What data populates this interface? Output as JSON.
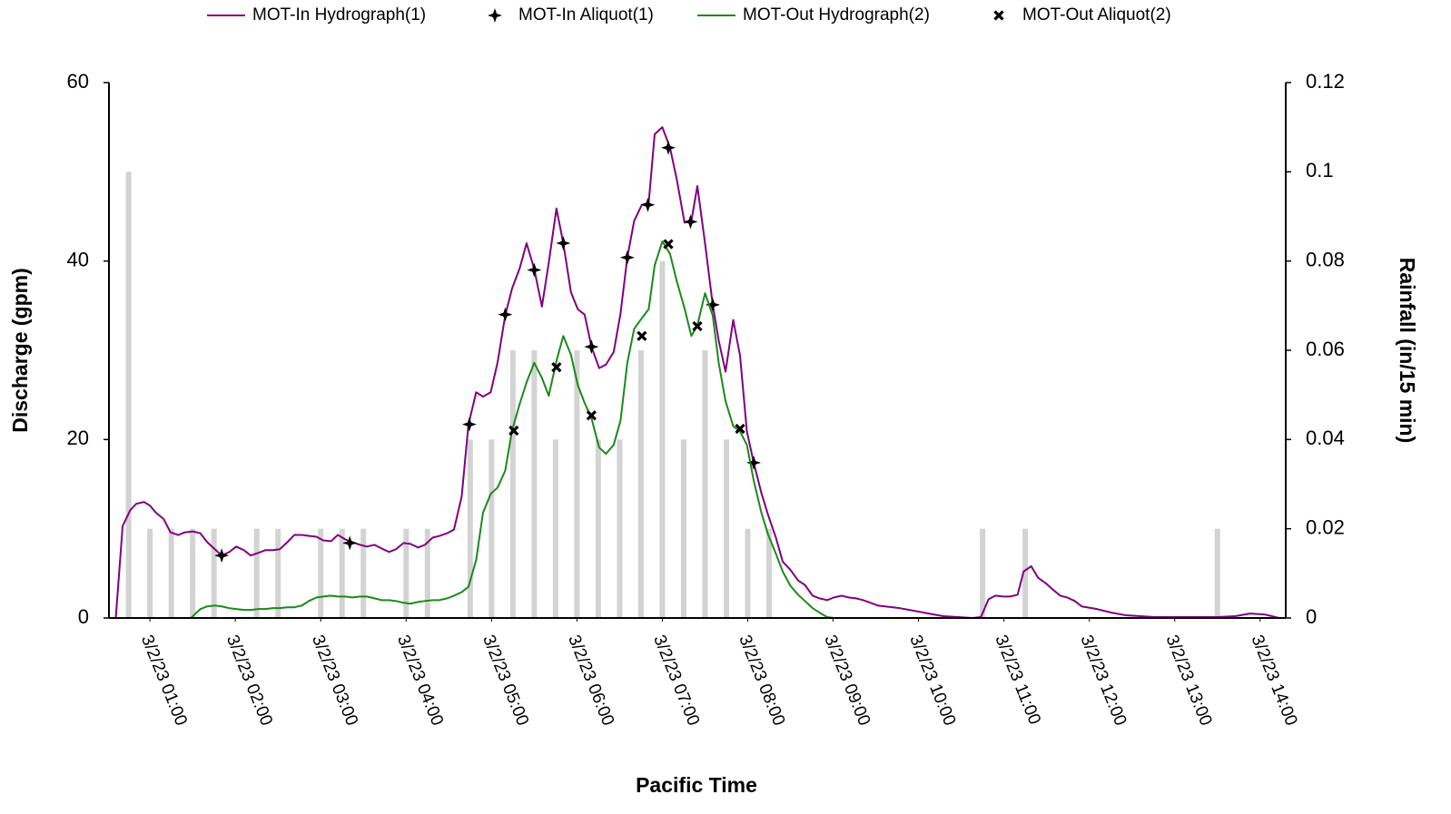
{
  "chart_data": {
    "type": "line",
    "x_label": "Pacific Time",
    "y_label": "Discharge (gpm)",
    "y2_label": "Rainfall (in/15 min)",
    "legend": "top",
    "xlim": [
      0.52,
      14.3
    ],
    "xticks": [
      {
        "value": 1,
        "label": "3/2/23 01:00"
      },
      {
        "value": 2,
        "label": "3/2/23 02:00"
      },
      {
        "value": 3,
        "label": "3/2/23 03:00"
      },
      {
        "value": 4,
        "label": "3/2/23 04:00"
      },
      {
        "value": 5,
        "label": "3/2/23 05:00"
      },
      {
        "value": 6,
        "label": "3/2/23 06:00"
      },
      {
        "value": 7,
        "label": "3/2/23 07:00"
      },
      {
        "value": 8,
        "label": "3/2/23 08:00"
      },
      {
        "value": 9,
        "label": "3/2/23 09:00"
      },
      {
        "value": 10,
        "label": "3/2/23 10:00"
      },
      {
        "value": 11,
        "label": "3/2/23 11:00"
      },
      {
        "value": 12,
        "label": "3/2/23 12:00"
      },
      {
        "value": 13,
        "label": "3/2/23 13:00"
      },
      {
        "value": 14,
        "label": "3/2/23 14:00"
      }
    ],
    "ylim": [
      0,
      60
    ],
    "yticks": [
      0,
      20,
      40,
      60
    ],
    "y2lim": [
      0,
      0.12
    ],
    "y2ticks": [
      0,
      0.02,
      0.04,
      0.06,
      0.08,
      0.1,
      0.12
    ],
    "series": [
      {
        "type": "bar",
        "axis": "y2",
        "color": "#d3d3d3",
        "x": [
          0.75,
          1.0,
          1.25,
          1.5,
          1.75,
          2.25,
          2.5,
          3.0,
          3.25,
          3.5,
          4.0,
          4.25,
          4.75,
          5.0,
          5.25,
          5.5,
          5.75,
          6.0,
          6.25,
          6.5,
          6.75,
          7.0,
          7.25,
          7.5,
          7.75,
          8.0,
          8.25,
          10.75,
          11.25,
          13.5
        ],
        "values": [
          0.1,
          0.02,
          0.02,
          0.02,
          0.02,
          0.02,
          0.02,
          0.02,
          0.02,
          0.02,
          0.02,
          0.02,
          0.04,
          0.04,
          0.06,
          0.06,
          0.04,
          0.06,
          0.04,
          0.04,
          0.06,
          0.08,
          0.04,
          0.06,
          0.04,
          0.02,
          0.02,
          0.02,
          0.02,
          0.02
        ]
      },
      {
        "type": "line",
        "name": "MOT-In Hydrograph(1)",
        "color": "#800080",
        "x": [
          0.6,
          0.68,
          0.77,
          0.84,
          0.93,
          1.0,
          1.07,
          1.16,
          1.24,
          1.33,
          1.41,
          1.5,
          1.59,
          1.67,
          1.76,
          1.84,
          1.93,
          2.01,
          2.1,
          2.18,
          2.27,
          2.35,
          2.44,
          2.52,
          2.61,
          2.69,
          2.78,
          2.86,
          2.95,
          3.03,
          3.12,
          3.2,
          3.29,
          3.37,
          3.46,
          3.54,
          3.63,
          3.71,
          3.8,
          3.88,
          3.97,
          4.05,
          4.14,
          4.22,
          4.31,
          4.39,
          4.48,
          4.56,
          4.65,
          4.73,
          4.82,
          4.9,
          4.99,
          5.07,
          5.16,
          5.24,
          5.33,
          5.41,
          5.5,
          5.59,
          5.67,
          5.76,
          5.84,
          5.93,
          6.01,
          6.09,
          6.17,
          6.26,
          6.34,
          6.43,
          6.51,
          6.59,
          6.67,
          6.76,
          6.84,
          6.91,
          7.0,
          7.09,
          7.17,
          7.26,
          7.34,
          7.41,
          7.5,
          7.59,
          7.66,
          7.74,
          7.83,
          7.91,
          7.99,
          8.07,
          8.16,
          8.24,
          8.33,
          8.41,
          8.5,
          8.59,
          8.67,
          8.76,
          8.84,
          8.93,
          9.01,
          9.1,
          9.18,
          9.27,
          9.35,
          9.44,
          9.52,
          9.61,
          9.78,
          9.95,
          10.12,
          10.29,
          10.46,
          10.63,
          10.73,
          10.82,
          10.9,
          10.99,
          11.07,
          11.16,
          11.23,
          11.32,
          11.4,
          11.49,
          11.57,
          11.66,
          11.74,
          11.83,
          11.91,
          12.09,
          12.26,
          12.43,
          12.6,
          12.77,
          13.07,
          13.5,
          13.71,
          13.88,
          14.05,
          14.14,
          14.22
        ],
        "values": [
          0,
          10.3,
          12.1,
          12.8,
          13.0,
          12.6,
          11.8,
          11.1,
          9.6,
          9.3,
          9.6,
          9.7,
          9.5,
          8.5,
          7.7,
          7.0,
          7.4,
          8.0,
          7.6,
          7.0,
          7.3,
          7.6,
          7.6,
          7.7,
          8.5,
          9.3,
          9.3,
          9.2,
          9.1,
          8.7,
          8.6,
          9.3,
          8.8,
          8.5,
          8.2,
          8.0,
          8.2,
          7.8,
          7.4,
          7.7,
          8.4,
          8.3,
          7.9,
          8.2,
          9.0,
          9.2,
          9.5,
          9.9,
          13.6,
          21.7,
          25.3,
          24.8,
          25.3,
          28.6,
          33.9,
          36.9,
          39.2,
          42.0,
          39.1,
          34.9,
          39.8,
          45.9,
          42.0,
          36.5,
          34.6,
          34.0,
          30.4,
          28.0,
          28.4,
          29.8,
          34.1,
          40.4,
          44.5,
          46.3,
          46.5,
          54.2,
          55.0,
          52.7,
          49.1,
          44.3,
          44.5,
          48.4,
          42.0,
          35.1,
          31.1,
          27.6,
          33.4,
          29.4,
          20.9,
          17.4,
          14.0,
          11.5,
          9.0,
          6.3,
          5.4,
          4.2,
          3.7,
          2.5,
          2.2,
          2.0,
          2.3,
          2.5,
          2.3,
          2.2,
          2.0,
          1.7,
          1.4,
          1.3,
          1.1,
          0.8,
          0.5,
          0.2,
          0.1,
          0,
          0.1,
          2.1,
          2.5,
          2.4,
          2.4,
          2.6,
          5.2,
          5.8,
          4.5,
          3.9,
          3.2,
          2.5,
          2.3,
          1.9,
          1.3,
          1.0,
          0.6,
          0.3,
          0.2,
          0.1,
          0.1,
          0.1,
          0.2,
          0.5,
          0.4,
          0.2,
          0
        ]
      },
      {
        "type": "scatter",
        "name": "MOT-In Aliquot(1)",
        "color": "#000000",
        "marker": "star",
        "x": [
          1.84,
          3.34,
          4.74,
          5.16,
          5.5,
          5.84,
          6.17,
          6.59,
          6.83,
          7.07,
          7.33,
          7.59,
          8.07
        ],
        "values": [
          7.0,
          8.4,
          21.7,
          34.0,
          39.0,
          42.0,
          30.4,
          40.4,
          46.3,
          52.7,
          44.4,
          35.1,
          17.4
        ]
      },
      {
        "type": "line",
        "name": "MOT-Out Hydrograph(2)",
        "color": "#1a8a1a",
        "x": [
          0.6,
          1.48,
          1.59,
          1.67,
          1.76,
          1.84,
          1.93,
          2.01,
          2.1,
          2.18,
          2.27,
          2.35,
          2.44,
          2.52,
          2.61,
          2.69,
          2.78,
          2.86,
          2.95,
          3.03,
          3.12,
          3.2,
          3.29,
          3.37,
          3.46,
          3.54,
          3.63,
          3.71,
          3.8,
          3.88,
          3.97,
          4.05,
          4.14,
          4.22,
          4.31,
          4.39,
          4.48,
          4.56,
          4.65,
          4.73,
          4.82,
          4.9,
          4.99,
          5.07,
          5.16,
          5.24,
          5.33,
          5.41,
          5.5,
          5.59,
          5.67,
          5.76,
          5.84,
          5.93,
          6.01,
          6.09,
          6.17,
          6.26,
          6.34,
          6.43,
          6.51,
          6.59,
          6.67,
          6.76,
          6.84,
          6.91,
          7.0,
          7.09,
          7.17,
          7.26,
          7.34,
          7.41,
          7.5,
          7.59,
          7.66,
          7.74,
          7.83,
          7.91,
          7.99,
          8.07,
          8.16,
          8.24,
          8.33,
          8.41,
          8.5,
          8.59,
          8.67,
          8.76,
          8.84,
          8.93,
          9.01,
          14.22
        ],
        "values": [
          0,
          0,
          1.0,
          1.3,
          1.4,
          1.3,
          1.1,
          1.0,
          0.9,
          0.9,
          1.0,
          1.0,
          1.1,
          1.1,
          1.2,
          1.2,
          1.4,
          1.9,
          2.3,
          2.4,
          2.5,
          2.4,
          2.4,
          2.3,
          2.4,
          2.4,
          2.2,
          2.0,
          2.0,
          1.9,
          1.7,
          1.6,
          1.8,
          1.9,
          2.0,
          2.0,
          2.2,
          2.5,
          2.9,
          3.5,
          6.5,
          11.8,
          13.9,
          14.6,
          16.5,
          21.0,
          24.0,
          26.4,
          28.6,
          26.9,
          24.9,
          28.8,
          31.6,
          29.5,
          26.1,
          24.1,
          22.4,
          19.1,
          18.4,
          19.4,
          22.1,
          28.6,
          32.4,
          33.6,
          34.6,
          39.5,
          42.2,
          40.8,
          37.7,
          34.7,
          31.6,
          32.8,
          36.4,
          33.9,
          28.6,
          24.3,
          21.5,
          20.9,
          19.4,
          15.4,
          11.8,
          9.3,
          7.2,
          5.2,
          3.6,
          2.6,
          1.9,
          1.1,
          0.6,
          0.1,
          0,
          0
        ]
      },
      {
        "type": "scatter",
        "name": "MOT-Out Aliquot(2)",
        "color": "#000000",
        "marker": "x",
        "x": [
          5.26,
          5.76,
          6.17,
          6.76,
          7.07,
          7.41,
          7.91
        ],
        "values": [
          21.0,
          28.1,
          22.7,
          31.6,
          41.9,
          32.7,
          21.2
        ]
      }
    ]
  }
}
